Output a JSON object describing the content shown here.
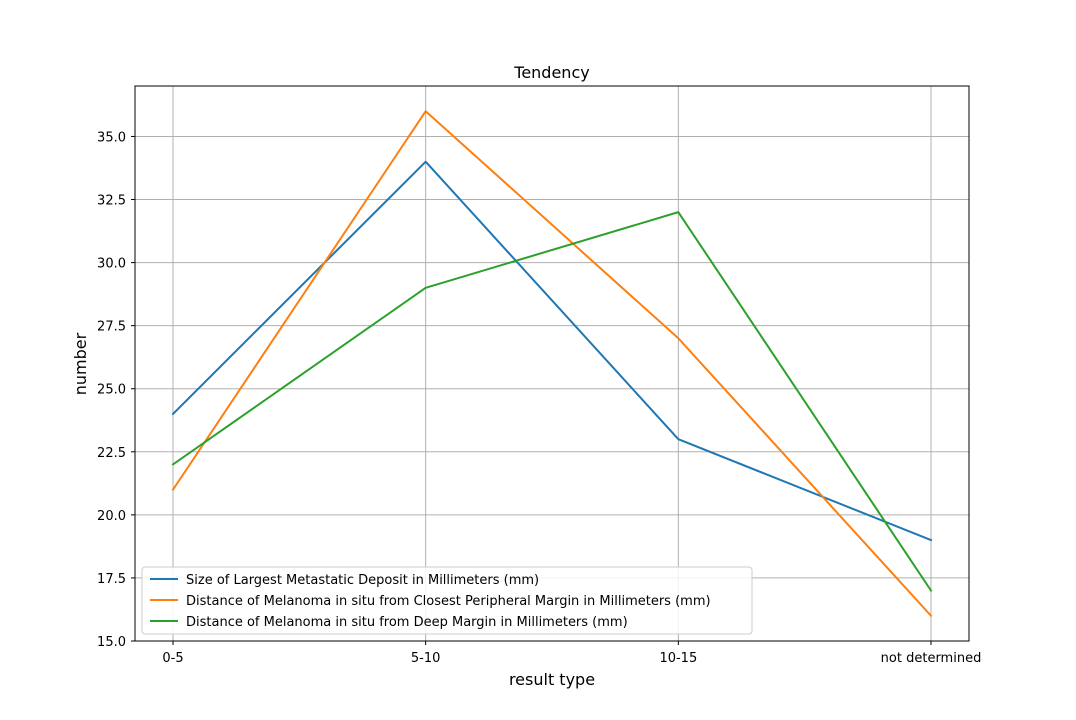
{
  "chart_data": {
    "type": "line",
    "title": "Tendency",
    "xlabel": "result type",
    "ylabel": "number",
    "categories": [
      "0-5",
      "5-10",
      "10-15",
      "not determined"
    ],
    "ylim": [
      15.0,
      37.0
    ],
    "yticks": [
      "15.0",
      "17.5",
      "20.0",
      "22.5",
      "25.0",
      "27.5",
      "30.0",
      "32.5",
      "35.0"
    ],
    "grid": true,
    "legend_position": "lower-left",
    "series": [
      {
        "name": "Size of Largest Metastatic Deposit in Millimeters (mm)",
        "color": "#1f77b4",
        "values": [
          24,
          34,
          23,
          19
        ]
      },
      {
        "name": "Distance of Melanoma in situ from Closest Peripheral Margin in Millimeters (mm)",
        "color": "#ff7f0e",
        "values": [
          21,
          36,
          27,
          16
        ]
      },
      {
        "name": "Distance of Melanoma in situ from Deep Margin in Millimeters (mm)",
        "color": "#2ca02c",
        "values": [
          22,
          29,
          32,
          17
        ]
      }
    ]
  }
}
